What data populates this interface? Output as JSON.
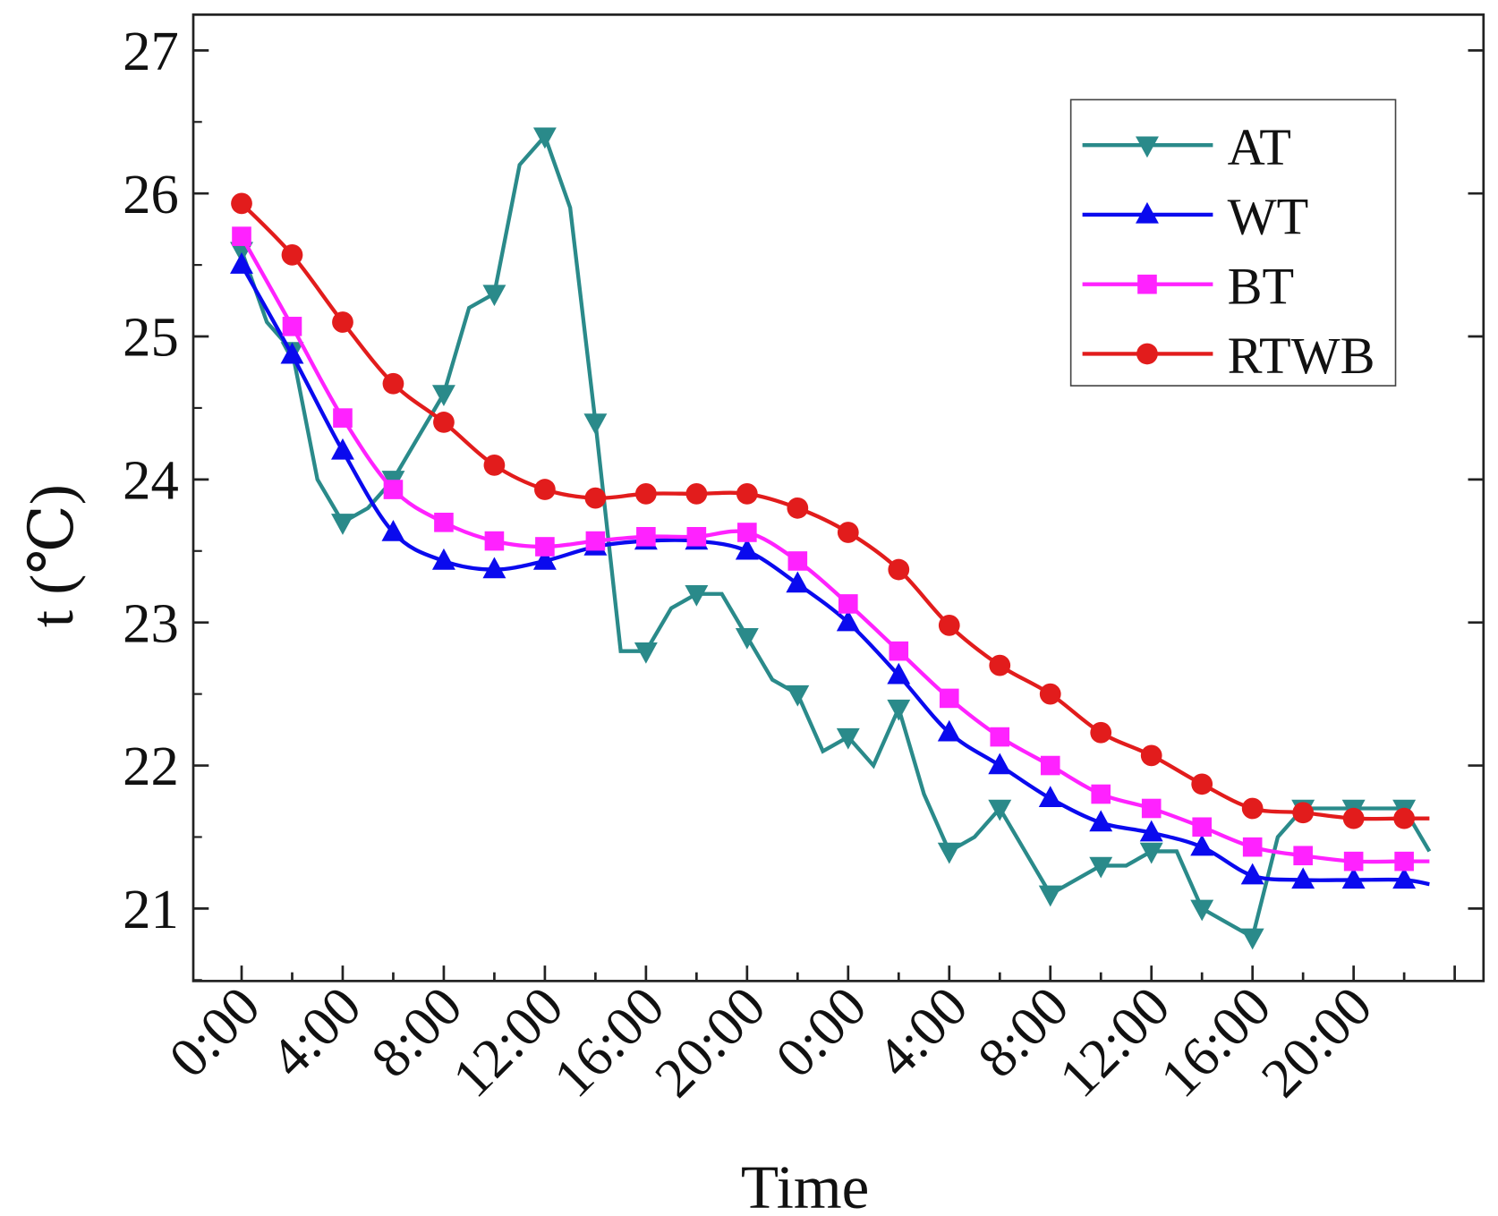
{
  "chart_data": {
    "type": "line",
    "title": "",
    "xlabel": "Time",
    "ylabel": "t (℃)",
    "xlim_hours": [
      -2,
      49
    ],
    "ylim": [
      20.5,
      27.2
    ],
    "yticks": [
      21,
      22,
      23,
      24,
      25,
      26,
      27
    ],
    "xticks": [
      {
        "hour": 0,
        "label": "0:00"
      },
      {
        "hour": 4,
        "label": "4:00"
      },
      {
        "hour": 8,
        "label": "8:00"
      },
      {
        "hour": 12,
        "label": "12:00"
      },
      {
        "hour": 16,
        "label": "16:00"
      },
      {
        "hour": 20,
        "label": "20:00"
      },
      {
        "hour": 24,
        "label": "0:00"
      },
      {
        "hour": 28,
        "label": "4:00"
      },
      {
        "hour": 32,
        "label": "8:00"
      },
      {
        "hour": 36,
        "label": "12:00"
      },
      {
        "hour": 40,
        "label": "16:00"
      },
      {
        "hour": 44,
        "label": "20:00"
      }
    ],
    "legend_position": "top-right",
    "grid": false,
    "series": [
      {
        "name": "AT",
        "color": "#2a8a8a",
        "marker": "triangle-down",
        "x": [
          0,
          1,
          2,
          3,
          4,
          5,
          6,
          7,
          8,
          9,
          10,
          11,
          12,
          13,
          14,
          15,
          16,
          17,
          18,
          19,
          20,
          21,
          22,
          23,
          24,
          25,
          26,
          27,
          28,
          29,
          30,
          31,
          32,
          33,
          34,
          35,
          36,
          37,
          38,
          39,
          40,
          41,
          42,
          43,
          44,
          45,
          46,
          47
        ],
        "y": [
          25.6,
          25.1,
          24.9,
          24.0,
          23.7,
          23.8,
          24.0,
          24.3,
          24.6,
          25.2,
          25.3,
          26.2,
          26.4,
          25.9,
          24.4,
          22.8,
          22.8,
          23.1,
          23.2,
          23.2,
          22.9,
          22.6,
          22.5,
          22.1,
          22.2,
          22.0,
          22.4,
          21.8,
          21.4,
          21.5,
          21.7,
          21.4,
          21.1,
          21.2,
          21.3,
          21.3,
          21.4,
          21.4,
          21.0,
          20.9,
          20.8,
          21.5,
          21.7,
          21.7,
          21.7,
          21.7,
          21.7,
          21.4
        ],
        "marker_every": 2
      },
      {
        "name": "WT",
        "color": "#0a0aee",
        "marker": "triangle-up",
        "x": [
          0,
          2,
          4,
          6,
          8,
          10,
          12,
          14,
          16,
          18,
          20,
          22,
          24,
          26,
          28,
          30,
          32,
          34,
          36,
          38,
          40,
          42,
          44,
          46,
          47
        ],
        "y": [
          25.5,
          24.87,
          24.2,
          23.63,
          23.43,
          23.37,
          23.43,
          23.53,
          23.57,
          23.57,
          23.5,
          23.27,
          23.0,
          22.63,
          22.23,
          22.0,
          21.77,
          21.6,
          21.53,
          21.43,
          21.23,
          21.2,
          21.2,
          21.2,
          21.17
        ]
      },
      {
        "name": "BT",
        "color": "#ff22ff",
        "marker": "square",
        "x": [
          0,
          2,
          4,
          6,
          8,
          10,
          12,
          14,
          16,
          18,
          20,
          22,
          24,
          26,
          28,
          30,
          32,
          34,
          36,
          38,
          40,
          42,
          44,
          46,
          47
        ],
        "y": [
          25.7,
          25.07,
          24.43,
          23.93,
          23.7,
          23.57,
          23.53,
          23.57,
          23.6,
          23.6,
          23.63,
          23.43,
          23.13,
          22.8,
          22.47,
          22.2,
          22.0,
          21.8,
          21.7,
          21.57,
          21.43,
          21.37,
          21.33,
          21.33,
          21.33
        ]
      },
      {
        "name": "RTWB",
        "color": "#e21c1c",
        "marker": "circle",
        "x": [
          0,
          2,
          4,
          6,
          8,
          10,
          12,
          14,
          16,
          18,
          20,
          22,
          24,
          26,
          28,
          30,
          32,
          34,
          36,
          38,
          40,
          42,
          44,
          46,
          47
        ],
        "y": [
          25.93,
          25.57,
          25.1,
          24.67,
          24.4,
          24.1,
          23.93,
          23.87,
          23.9,
          23.9,
          23.9,
          23.8,
          23.63,
          23.37,
          22.98,
          22.7,
          22.5,
          22.23,
          22.07,
          21.87,
          21.7,
          21.67,
          21.63,
          21.63,
          21.63
        ]
      }
    ]
  }
}
